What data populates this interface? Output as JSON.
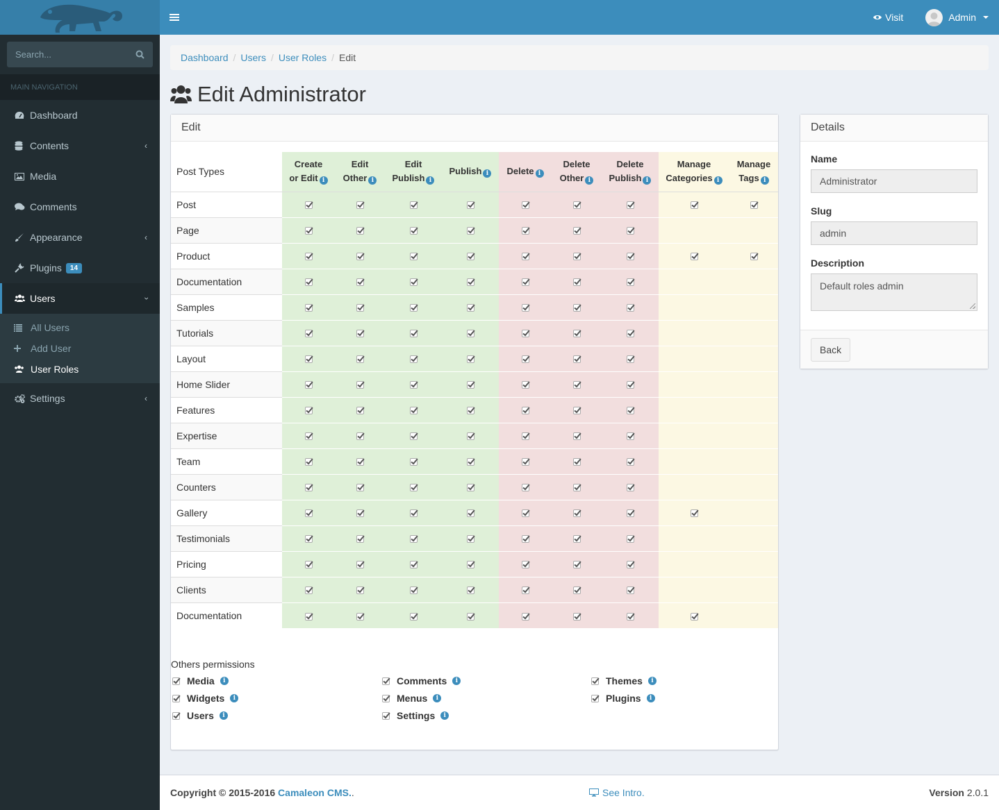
{
  "colors": {
    "topbar": "#3c8dbc",
    "sidebar": "#222d32",
    "green": "#dff0d8",
    "red": "#f2dede",
    "yellow": "#fcf8e3"
  },
  "sidebar": {
    "search_placeholder": "Search...",
    "header": "MAIN NAVIGATION",
    "items": [
      {
        "label": "Dashboard",
        "icon": "dashboard-icon"
      },
      {
        "label": "Contents",
        "icon": "database-icon"
      },
      {
        "label": "Media",
        "icon": "image-icon"
      },
      {
        "label": "Comments",
        "icon": "comments-icon"
      },
      {
        "label": "Appearance",
        "icon": "paint-brush-icon"
      },
      {
        "label": "Plugins",
        "icon": "plug-icon",
        "badge": "14"
      },
      {
        "label": "Users",
        "icon": "users-icon"
      },
      {
        "label": "Settings",
        "icon": "cogs-icon"
      }
    ],
    "subitems": [
      {
        "label": "All Users",
        "icon": "list-icon"
      },
      {
        "label": "Add User",
        "icon": "plus-icon"
      },
      {
        "label": "User Roles",
        "icon": "users-icon"
      }
    ]
  },
  "topbar": {
    "visit": "Visit",
    "user": "Admin"
  },
  "breadcrumb": {
    "items": [
      "Dashboard",
      "Users",
      "User Roles"
    ],
    "current": "Edit"
  },
  "page_title": "Edit Administrator",
  "edit_box": {
    "title": "Edit",
    "first_col": "Post Types",
    "columns": [
      {
        "l1": "Create",
        "l2": "or Edit"
      },
      {
        "l1": "Edit",
        "l2": "Other"
      },
      {
        "l1": "Edit",
        "l2": "Publish"
      },
      {
        "l1": "",
        "l2": "Publish"
      },
      {
        "l1": "",
        "l2": "Delete"
      },
      {
        "l1": "Delete",
        "l2": "Other"
      },
      {
        "l1": "Delete",
        "l2": "Publish"
      },
      {
        "l1": "Manage",
        "l2": "Categories"
      },
      {
        "l1": "Manage",
        "l2": "Tags"
      }
    ],
    "rows": [
      {
        "name": "Post",
        "cats": true,
        "tags": true
      },
      {
        "name": "Page",
        "cats": false,
        "tags": false
      },
      {
        "name": "Product",
        "cats": true,
        "tags": true
      },
      {
        "name": "Documentation",
        "cats": false,
        "tags": false
      },
      {
        "name": "Samples",
        "cats": false,
        "tags": false
      },
      {
        "name": "Tutorials",
        "cats": false,
        "tags": false
      },
      {
        "name": "Layout",
        "cats": false,
        "tags": false
      },
      {
        "name": "Home Slider",
        "cats": false,
        "tags": false
      },
      {
        "name": "Features",
        "cats": false,
        "tags": false
      },
      {
        "name": "Expertise",
        "cats": false,
        "tags": false
      },
      {
        "name": "Team",
        "cats": false,
        "tags": false
      },
      {
        "name": "Counters",
        "cats": false,
        "tags": false
      },
      {
        "name": "Gallery",
        "cats": true,
        "tags": false
      },
      {
        "name": "Testimonials",
        "cats": false,
        "tags": false
      },
      {
        "name": "Pricing",
        "cats": false,
        "tags": false
      },
      {
        "name": "Clients",
        "cats": false,
        "tags": false
      },
      {
        "name": "Documentation",
        "cats": true,
        "tags": false
      }
    ],
    "others_title": "Others permissions",
    "others": [
      "Media",
      "Comments",
      "Themes",
      "Widgets",
      "Menus",
      "Plugins",
      "Users",
      "Settings"
    ]
  },
  "details": {
    "title": "Details",
    "name_label": "Name",
    "name_value": "Administrator",
    "slug_label": "Slug",
    "slug_value": "admin",
    "desc_label": "Description",
    "desc_value": "Default roles admin",
    "back": "Back"
  },
  "footer": {
    "copyright": "Copyright © 2015-2016",
    "brand": "Camaleon CMS.",
    "dot": " .",
    "intro": "See Intro.",
    "version_label": "Version",
    "version": "2.0.1"
  }
}
